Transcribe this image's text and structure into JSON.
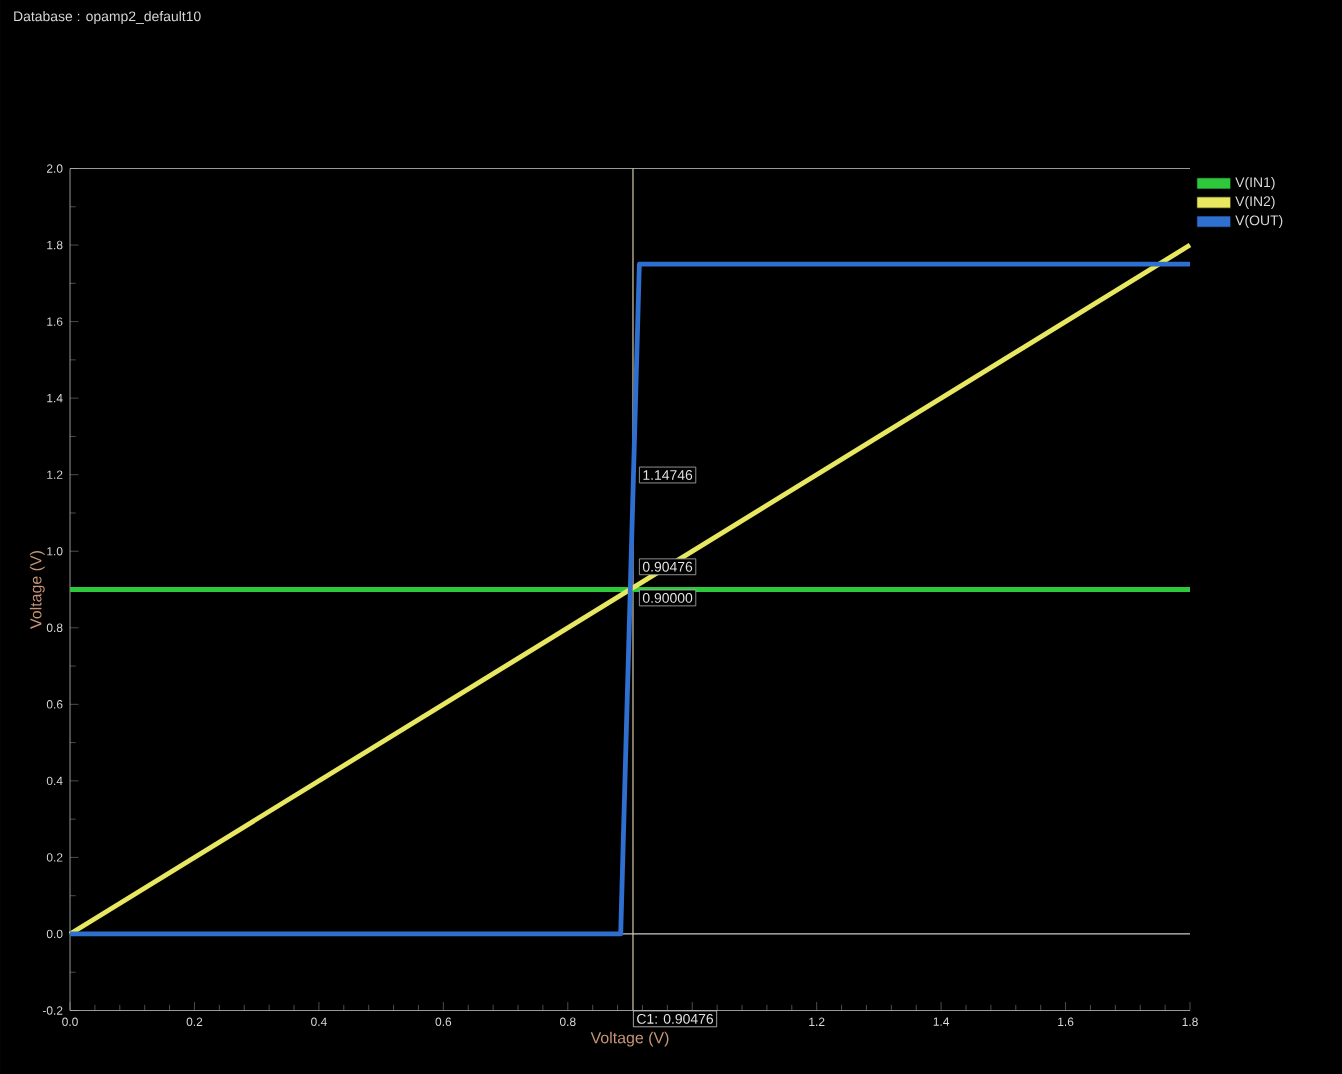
{
  "chart_data": {
    "type": "line",
    "title": "Database : opamp2_default10",
    "xlabel": "Voltage (V)",
    "ylabel": "Voltage (V)",
    "series": [
      {
        "name": "V(IN1)",
        "color": "#2ec83c",
        "x": [
          0,
          1.8
        ],
        "values": [
          0.9,
          0.9
        ]
      },
      {
        "name": "V(IN2)",
        "color": "#e8e860",
        "x": [
          0,
          1.8
        ],
        "values": [
          0,
          1.8
        ]
      },
      {
        "name": "V(OUT)",
        "color": "#2f6fd0",
        "x": [
          0,
          0.885,
          0.915,
          1.8
        ],
        "values": [
          0,
          0,
          1.75,
          1.75
        ]
      }
    ],
    "xlim": [
      0,
      1.8
    ],
    "ylim": [
      -0.2,
      2.0
    ],
    "xticks": [
      {
        "value": 0,
        "label": "0.0"
      },
      {
        "value": 0.2,
        "label": "0.2"
      },
      {
        "value": 0.4,
        "label": "0.4"
      },
      {
        "value": 0.6,
        "label": "0.6"
      },
      {
        "value": 0.8,
        "label": "0.8"
      },
      {
        "value": 1.0,
        "label": null
      },
      {
        "value": 1.2,
        "label": "1.2"
      },
      {
        "value": 1.4,
        "label": "1.4"
      },
      {
        "value": 1.6,
        "label": "1.6"
      },
      {
        "value": 1.8,
        "label": "1.8"
      }
    ],
    "yticks": [
      {
        "value": -0.2,
        "label": "-0.2"
      },
      {
        "value": 0,
        "label": "0.0"
      },
      {
        "value": 0.2,
        "label": "0.2"
      },
      {
        "value": 0.4,
        "label": "0.4"
      },
      {
        "value": 0.6,
        "label": "0.6"
      },
      {
        "value": 0.8,
        "label": "0.8"
      },
      {
        "value": 1.0,
        "label": "1.0"
      },
      {
        "value": 1.2,
        "label": "1.2"
      },
      {
        "value": 1.4,
        "label": "1.4"
      },
      {
        "value": 1.6,
        "label": "1.6"
      },
      {
        "value": 1.8,
        "label": "1.8"
      },
      {
        "value": 2.0,
        "label": "2.0"
      }
    ],
    "ref_lines": [
      {
        "axis": "x",
        "value": 0.90476,
        "label": "C1: 0.90476",
        "color": "#d8c8a8"
      },
      {
        "axis": "y",
        "value": 0,
        "color": "#c8c8c8"
      }
    ],
    "annotations": [
      "1.14746",
      "0.90476",
      "0.90000"
    ],
    "legend": "top right",
    "grid": false,
    "marker": "none",
    "line_style": "solid"
  }
}
